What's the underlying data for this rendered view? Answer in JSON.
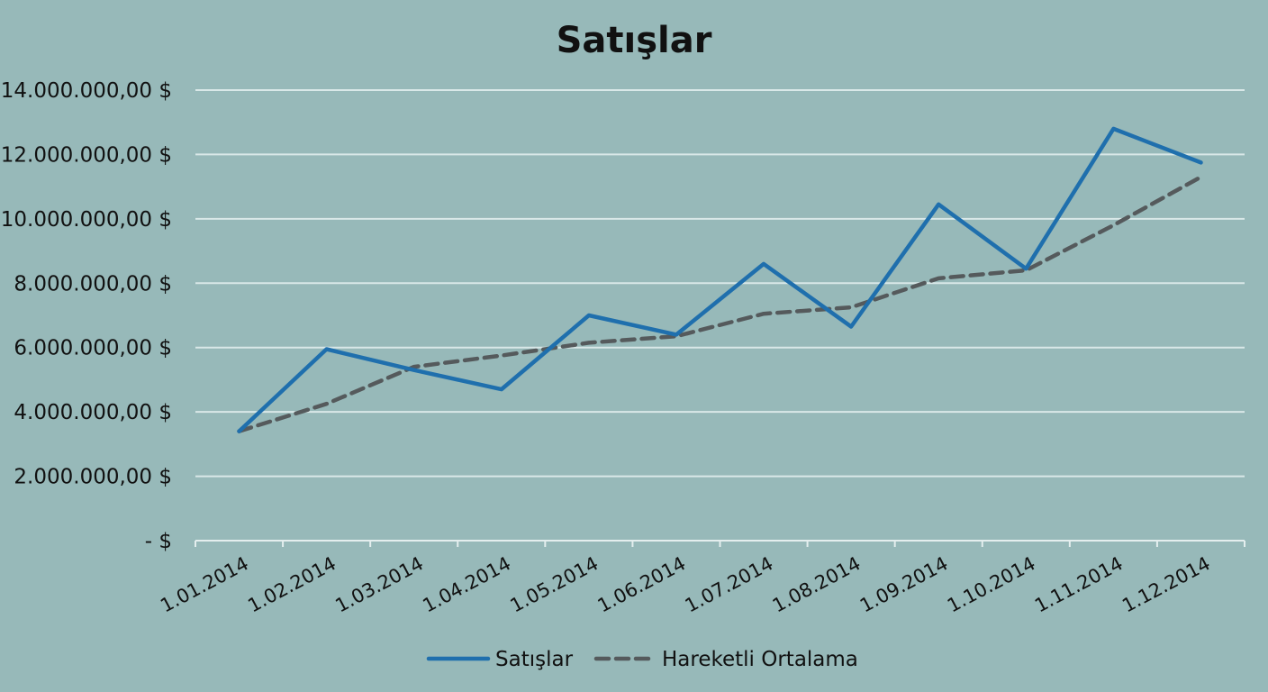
{
  "chart_data": {
    "type": "line",
    "title": "Satışlar",
    "xlabel": "",
    "ylabel": "",
    "categories": [
      "1.01.2014",
      "1.02.2014",
      "1.03.2014",
      "1.04.2014",
      "1.05.2014",
      "1.06.2014",
      "1.07.2014",
      "1.08.2014",
      "1.09.2014",
      "1.10.2014",
      "1.11.2014",
      "1.12.2014"
    ],
    "y_tick_values": [
      0,
      2000000,
      4000000,
      6000000,
      8000000,
      10000000,
      12000000,
      14000000
    ],
    "y_tick_labels": [
      "-  $",
      "2.000.000,00 $",
      "4.000.000,00 $",
      "6.000.000,00 $",
      "8.000.000,00 $",
      "10.000.000,00 $",
      "12.000.000,00 $",
      "14.000.000,00 $"
    ],
    "ylim": [
      0,
      14000000
    ],
    "grid": "horizontal",
    "legend_position": "bottom",
    "series": [
      {
        "name": "Satışlar",
        "style": "solid",
        "color": "#1f6fad",
        "values": [
          3400000,
          5950000,
          5300000,
          4700000,
          7000000,
          6400000,
          8600000,
          6650000,
          10450000,
          8450000,
          12800000,
          11750000
        ]
      },
      {
        "name": "Hareketli Ortalama",
        "style": "dashed",
        "color": "#555a5c",
        "values": [
          3400000,
          4250000,
          5400000,
          5750000,
          6150000,
          6350000,
          7050000,
          7250000,
          8150000,
          8400000,
          9800000,
          11300000
        ]
      }
    ]
  }
}
